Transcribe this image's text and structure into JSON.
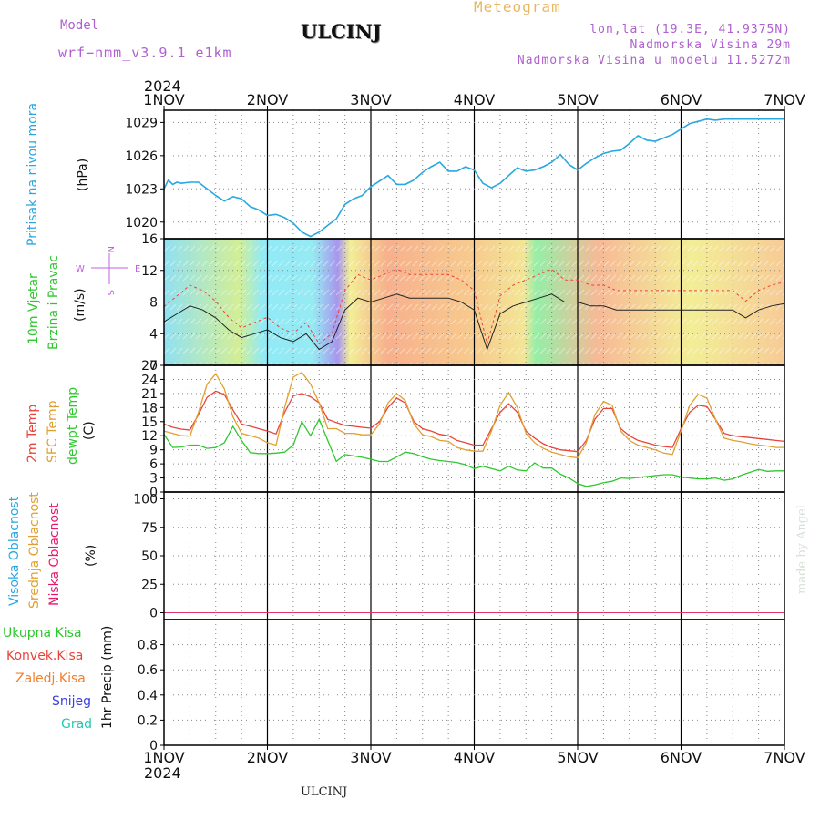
{
  "header": {
    "model_label": "Model",
    "model_name": "wrf−nmm_v3.9.1  e1km",
    "station": "ULCINJ",
    "meteogram": "Meteogram",
    "lonlat": "lon,lat (19.3E, 41.9375N)",
    "altitude": "Nadmorska Visina 29m",
    "model_altitude": "Nadmorska Visina u modelu 11.5272m"
  },
  "footer": {
    "station": "ULCINJ",
    "credit": "made by Angel"
  },
  "colors": {
    "pressure": "#27a8e0",
    "temp2m": "#e8433a",
    "sfc": "#e0a030",
    "dew": "#2ec82e",
    "high_cloud": "#27a8e0",
    "mid_cloud": "#e0a030",
    "low_cloud": "#e8186e",
    "grid": "#888888",
    "frame": "#000000"
  },
  "time_axis": {
    "year": "2024",
    "labels": [
      "1NOV",
      "2NOV",
      "3NOV",
      "4NOV",
      "5NOV",
      "6NOV",
      "7NOV"
    ]
  },
  "panels": {
    "pressure": {
      "label": "Pritisak na nivou mora",
      "unit": "(hPa)"
    },
    "wind": {
      "label1": "10m Vjetar",
      "label2": "Brzina i Pravac",
      "unit": "(m/s)",
      "compass_n": "N",
      "compass_s": "S",
      "compass_w": "W",
      "compass_e": "E"
    },
    "temp": {
      "label_2m": "2m Temp",
      "label_sfc": "SFC Temp",
      "label_dew": "dewpt Temp",
      "unit": "(C)"
    },
    "cloud": {
      "label_high": "Visoka Oblacnost",
      "label_mid": "Srednja Oblacnost",
      "label_low": "Niska Oblacnost",
      "unit": "(%)"
    },
    "precip": {
      "labels": [
        "Ukupna Kisa",
        "Konvek.Kisa",
        "Zaledj.Kisa",
        "Snijeg",
        "Grad"
      ],
      "unit": "1hr Precip (mm)"
    }
  },
  "chart_data": [
    {
      "type": "line",
      "title": "",
      "ylabel": "(hPa)",
      "ylim": [
        1018.5,
        1030.1
      ],
      "yticks": [
        1020,
        1023,
        1026,
        1029
      ],
      "series": [
        {
          "name": "Pritisak na nivou mora",
          "x": [
            0,
            1,
            2,
            3,
            4,
            6,
            8,
            10,
            12,
            14,
            16,
            18,
            20,
            22,
            24,
            26,
            28,
            30,
            32,
            34,
            36,
            38,
            40,
            42,
            44,
            46,
            48,
            50,
            52,
            54,
            56,
            58,
            60,
            62,
            64,
            66,
            68,
            70,
            72,
            74,
            76,
            78,
            80,
            82,
            84,
            86,
            88,
            90,
            92,
            94,
            96,
            98,
            100,
            102,
            104,
            106,
            108,
            110,
            112,
            114,
            116,
            118,
            120,
            122,
            124,
            126,
            128,
            130,
            132,
            134,
            136,
            138,
            140,
            142,
            144
          ],
          "y": [
            1023,
            1023.8,
            1023.4,
            1023.6,
            1023.5,
            1023.6,
            1023.6,
            1023.0,
            1022.4,
            1021.9,
            1022.3,
            1022.1,
            1021.4,
            1021.1,
            1020.6,
            1020.7,
            1020.4,
            1019.9,
            1019.1,
            1018.7,
            1019.1,
            1019.7,
            1020.3,
            1021.6,
            1022.1,
            1022.4,
            1023.2,
            1023.7,
            1024.2,
            1023.4,
            1023.4,
            1023.8,
            1024.5,
            1025.0,
            1025.4,
            1024.6,
            1024.6,
            1025.0,
            1024.7,
            1023.5,
            1023.1,
            1023.5,
            1024.2,
            1024.9,
            1024.6,
            1024.7,
            1025.0,
            1025.4,
            1026.1,
            1025.2,
            1024.7,
            1025.3,
            1025.8,
            1026.2,
            1026.4,
            1026.5,
            1027.1,
            1027.8,
            1027.4,
            1027.3,
            1027.6,
            1027.9,
            1028.4,
            1028.9,
            1029.1,
            1029.3,
            1029.2,
            1029.3,
            1029.3,
            1029.3,
            1029.3,
            1029.3,
            1029.3,
            1029.3,
            1029.3
          ]
        }
      ]
    },
    {
      "type": "line",
      "title": "",
      "ylabel": "(m/s)",
      "ylim": [
        0,
        16
      ],
      "yticks": [
        0,
        4,
        8,
        12,
        16
      ],
      "series": [
        {
          "name": "",
          "x": [
            0,
            3,
            6,
            9,
            12,
            15,
            18,
            21,
            24,
            27,
            30,
            33,
            36,
            39,
            42,
            45,
            48,
            51,
            54,
            57,
            60,
            63,
            66,
            69,
            72,
            75,
            78,
            81,
            84,
            87,
            90,
            93,
            96,
            99,
            102,
            105,
            108,
            111,
            114,
            117,
            120,
            123,
            126,
            129,
            132,
            135,
            138,
            141,
            144
          ],
          "y": [
            5.5,
            6.5,
            7.5,
            7,
            6,
            4.5,
            3.5,
            4,
            4.5,
            3.5,
            3,
            4,
            2,
            3,
            7,
            8.5,
            8,
            8.5,
            9,
            8.5,
            8.5,
            8.5,
            8.5,
            8,
            7,
            2,
            6.5,
            7.5,
            8,
            8.5,
            9,
            8,
            8,
            7.5,
            7.5,
            7,
            7,
            7,
            7,
            7,
            7,
            7,
            7,
            7,
            7,
            6,
            7,
            7.5,
            7.8
          ]
        }
      ]
    },
    {
      "type": "line",
      "title": "",
      "ylabel": "(C)",
      "ylim": [
        0,
        27
      ],
      "yticks": [
        0,
        3,
        6,
        9,
        12,
        15,
        18,
        21,
        24,
        27
      ],
      "x": [
        0,
        2,
        4,
        6,
        8,
        10,
        12,
        14,
        16,
        18,
        20,
        22,
        24,
        26,
        28,
        30,
        32,
        34,
        36,
        38,
        40,
        42,
        44,
        46,
        48,
        50,
        52,
        54,
        56,
        58,
        60,
        62,
        64,
        66,
        68,
        70,
        72,
        74,
        76,
        78,
        80,
        82,
        84,
        86,
        88,
        90,
        92,
        94,
        96,
        98,
        100,
        102,
        104,
        106,
        108,
        110,
        112,
        114,
        116,
        118,
        120,
        122,
        124,
        126,
        128,
        130,
        132,
        134,
        136,
        138,
        140,
        142,
        144
      ],
      "series": [
        {
          "name": "2m Temp",
          "values": [
            14.5,
            13.8,
            13.4,
            13.2,
            16.5,
            20.2,
            21.5,
            20.8,
            17.5,
            14.5,
            14,
            13.5,
            13,
            12.4,
            17,
            20.5,
            21,
            20.3,
            19,
            15.5,
            14.8,
            14.2,
            14,
            13.8,
            13.6,
            15,
            18,
            20,
            19,
            15,
            13.5,
            13,
            12.3,
            12,
            11,
            10.5,
            10,
            10,
            13.5,
            17,
            18.8,
            17,
            13,
            11.5,
            10.3,
            9.5,
            9,
            8.8,
            8.6,
            11,
            15.5,
            17.8,
            17.8,
            13.5,
            12,
            11,
            10.5,
            10,
            9.7,
            9.5,
            13.5,
            17,
            18.5,
            18.2,
            15.5,
            12.5,
            12,
            11.8,
            11.6,
            11.4,
            11.2,
            11,
            10.8
          ]
        },
        {
          "name": "SFC Temp",
          "values": [
            13,
            12.5,
            12,
            11.9,
            17,
            23,
            25.2,
            22,
            16,
            12.5,
            12,
            11.5,
            10.5,
            10,
            18,
            24.5,
            25.5,
            23,
            19,
            13.5,
            13.5,
            12.5,
            12.5,
            12.2,
            12.2,
            14.5,
            19,
            21,
            19.5,
            14.5,
            12.2,
            11.8,
            11,
            10.8,
            9.5,
            9,
            8.7,
            8.7,
            13,
            18.5,
            21.2,
            18,
            12.5,
            10.5,
            9.3,
            8.5,
            8,
            7.5,
            7.3,
            10.5,
            16.5,
            19.3,
            18.5,
            13,
            11,
            10,
            9.5,
            9,
            8.3,
            8,
            13,
            18.5,
            20.8,
            20,
            15.5,
            11.5,
            11,
            10.7,
            10.3,
            10,
            9.8,
            9.5,
            9.5
          ]
        },
        {
          "name": "dewpt Temp",
          "values": [
            12.3,
            9.5,
            9.6,
            10,
            10,
            9.3,
            9.5,
            10.5,
            14,
            11,
            8.4,
            8.2,
            8.2,
            8.3,
            8.5,
            10,
            15,
            12,
            15.5,
            11,
            6.5,
            8,
            7.7,
            7.4,
            7.0,
            6.5,
            6.5,
            7.5,
            8.5,
            8.2,
            7.5,
            7,
            6.7,
            6.5,
            6.3,
            5.8,
            5.0,
            5.5,
            5,
            4.5,
            5.5,
            4.7,
            4.5,
            6.2,
            5.1,
            5.1,
            3.8,
            3.0,
            1.8,
            1.2,
            1.5,
            2.0,
            2.3,
            3.0,
            2.9,
            3.1,
            3.3,
            3.5,
            3.7,
            3.7,
            3.2,
            3.0,
            2.8,
            2.8,
            3.0,
            2.5,
            2.8,
            3.6,
            4.2,
            4.8,
            4.4,
            4.5,
            4.5
          ]
        }
      ]
    },
    {
      "type": "line",
      "title": "",
      "ylabel": "(%)",
      "ylim": [
        -6,
        106
      ],
      "yticks": [
        0,
        25,
        50,
        75,
        100
      ],
      "series": [
        {
          "name": "Visoka Oblacnost",
          "x": [
            0,
            144
          ],
          "y": [
            0,
            0
          ]
        },
        {
          "name": "Srednja Oblacnost",
          "x": [
            0,
            144
          ],
          "y": [
            0,
            0
          ]
        },
        {
          "name": "Niska Oblacnost",
          "x": [
            0,
            144
          ],
          "y": [
            0,
            0
          ]
        }
      ]
    },
    {
      "type": "line",
      "title": "",
      "ylabel": "1hr Precip (mm)",
      "ylim": [
        0,
        1
      ],
      "yticks": [
        0,
        0.2,
        0.4,
        0.6,
        0.8
      ],
      "series": [
        {
          "name": "Ukupna Kisa",
          "x": [
            0,
            144
          ],
          "y": [
            0,
            0
          ]
        },
        {
          "name": "Konvek.Kisa",
          "x": [
            0,
            144
          ],
          "y": [
            0,
            0
          ]
        },
        {
          "name": "Zaledj.Kisa",
          "x": [
            0,
            144
          ],
          "y": [
            0,
            0
          ]
        },
        {
          "name": "Snijeg",
          "x": [
            0,
            144
          ],
          "y": [
            0,
            0
          ]
        },
        {
          "name": "Grad",
          "x": [
            0,
            144
          ],
          "y": [
            0,
            0
          ]
        }
      ]
    }
  ]
}
